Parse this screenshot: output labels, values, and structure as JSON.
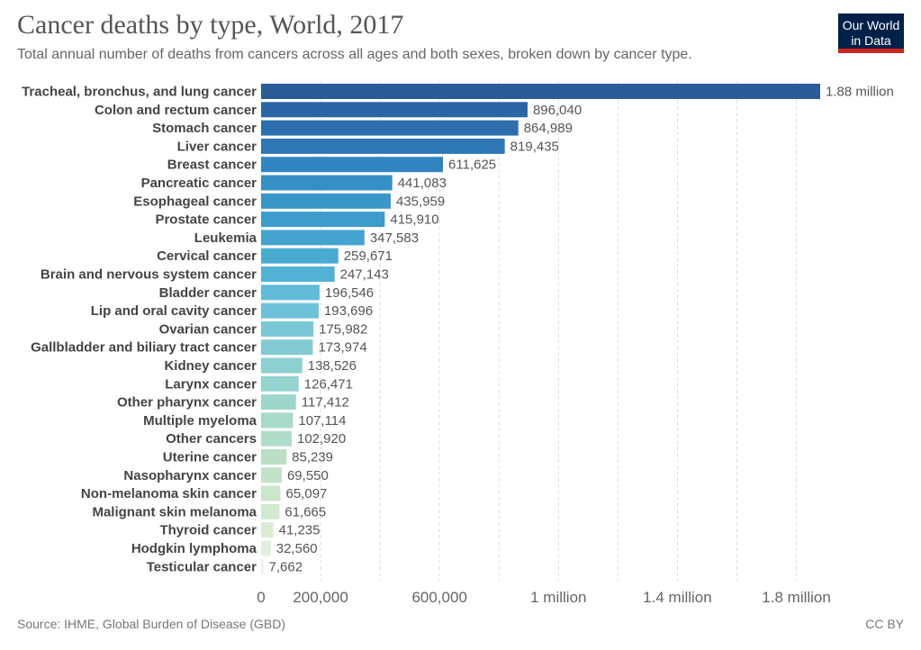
{
  "header": {
    "title": "Cancer deaths by type, World, 2017",
    "subtitle": "Total annual number of deaths from cancers across all ages and both sexes, broken down by cancer type."
  },
  "logo": {
    "line1": "Our World",
    "line2": "in Data",
    "bg_color": "#002147",
    "accent_color": "#ce261e"
  },
  "footer": {
    "source": "Source: IHME, Global Burden of Disease (GBD)",
    "license": "CC BY"
  },
  "chart_data": {
    "type": "bar",
    "orientation": "horizontal",
    "title": "Cancer deaths by type, World, 2017",
    "categories": [
      "Tracheal, bronchus, and lung cancer",
      "Colon and rectum cancer",
      "Stomach cancer",
      "Liver cancer",
      "Breast cancer",
      "Pancreatic cancer",
      "Esophageal cancer",
      "Prostate cancer",
      "Leukemia",
      "Cervical cancer",
      "Brain and nervous system cancer",
      "Bladder cancer",
      "Lip and oral cavity cancer",
      "Ovarian cancer",
      "Gallbladder and biliary tract cancer",
      "Kidney cancer",
      "Larynx cancer",
      "Other pharynx cancer",
      "Multiple myeloma",
      "Other cancers",
      "Uterine cancer",
      "Nasopharynx cancer",
      "Non-melanoma skin cancer",
      "Malignant skin melanoma",
      "Thyroid cancer",
      "Hodgkin lymphoma",
      "Testicular cancer"
    ],
    "values": [
      1880000,
      896040,
      864989,
      819435,
      611625,
      441083,
      435959,
      415910,
      347583,
      259671,
      247143,
      196546,
      193696,
      175982,
      173974,
      138526,
      126471,
      117412,
      107114,
      102920,
      85239,
      69550,
      65097,
      61665,
      41235,
      32560,
      7662
    ],
    "value_labels": [
      "1.88 million",
      "896,040",
      "864,989",
      "819,435",
      "611,625",
      "441,083",
      "435,959",
      "415,910",
      "347,583",
      "259,671",
      "247,143",
      "196,546",
      "193,696",
      "175,982",
      "173,974",
      "138,526",
      "126,471",
      "117,412",
      "107,114",
      "102,920",
      "85,239",
      "69,550",
      "65,097",
      "61,665",
      "41,235",
      "32,560",
      "7,662"
    ],
    "colors": [
      "#2b5a98",
      "#2c65a6",
      "#2d6fae",
      "#2e77b5",
      "#3284c0",
      "#368fc5",
      "#3a96c8",
      "#3d9ccb",
      "#44a3ce",
      "#4aabd2",
      "#52b2d6",
      "#62bbd8",
      "#6dc1d9",
      "#7ac7d7",
      "#82cbd3",
      "#8ccfd0",
      "#95d3ce",
      "#9fd6cb",
      "#a8dac9",
      "#b0ddc7",
      "#badfc5",
      "#c3e3c8",
      "#cae6cb",
      "#d1e9cf",
      "#d9edd4",
      "#e1f0dc",
      "#e8f4e4"
    ],
    "x_ticks": [
      0,
      200000,
      600000,
      1000000,
      1400000,
      1800000
    ],
    "x_tick_labels": [
      "0",
      "200,000",
      "600,000",
      "1 million",
      "1.4 million",
      "1.8 million"
    ],
    "gridlines": [
      200000,
      400000,
      600000,
      800000,
      1000000,
      1200000,
      1400000,
      1600000,
      1800000
    ],
    "xlim": [
      0,
      1900000
    ],
    "grid": true
  }
}
